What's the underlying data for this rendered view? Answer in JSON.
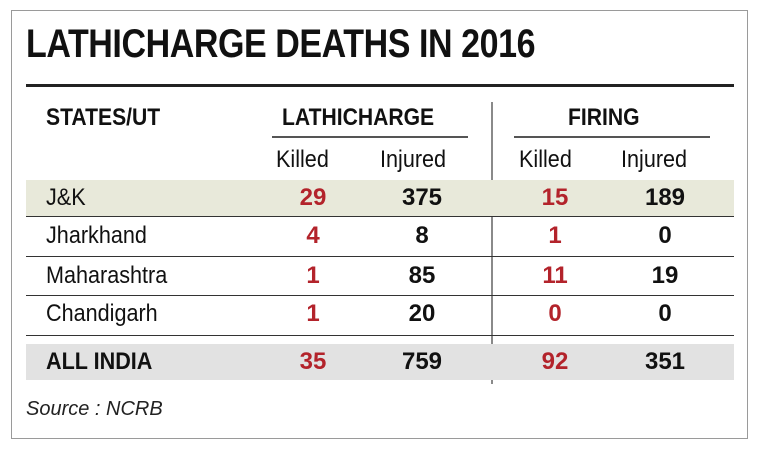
{
  "title": "LATHICHARGE DEATHS IN 2016",
  "headers": {
    "states": "STATES/UT",
    "lathicharge": "LATHICHARGE",
    "firing": "FIRING",
    "killed_1": "Killed",
    "injured_1": "Injured",
    "killed_2": "Killed",
    "injured_2": "Injured"
  },
  "rows": [
    {
      "state": "J&K",
      "lathi_killed": "29",
      "lathi_injured": "375",
      "firing_killed": "15",
      "firing_injured": "189"
    },
    {
      "state": "Jharkhand",
      "lathi_killed": "4",
      "lathi_injured": "8",
      "firing_killed": "1",
      "firing_injured": "0"
    },
    {
      "state": "Maharashtra",
      "lathi_killed": "1",
      "lathi_injured": "85",
      "firing_killed": "11",
      "firing_injured": "19"
    },
    {
      "state": "Chandigarh",
      "lathi_killed": "1",
      "lathi_injured": "20",
      "firing_killed": "0",
      "firing_injured": "0"
    },
    {
      "state": "ALL INDIA",
      "lathi_killed": "35",
      "lathi_injured": "759",
      "firing_killed": "92",
      "firing_injured": "351"
    }
  ],
  "source": "Source : NCRB",
  "colors": {
    "killed": "#b3232b",
    "row_highlight": "#e8e9da",
    "total_row": "#e2e2e2"
  }
}
